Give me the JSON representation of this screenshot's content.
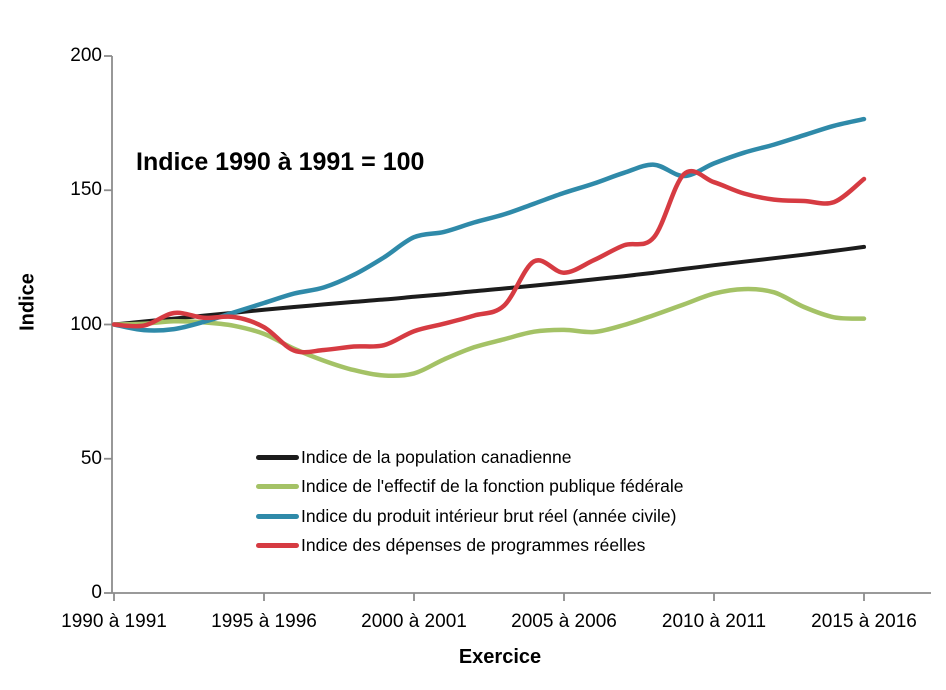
{
  "chart_data": {
    "type": "line",
    "annotation": "Indice 1990 à 1991 = 100",
    "xlabel": "Exercice",
    "ylabel": "Indice",
    "ylim": [
      0,
      200
    ],
    "y_ticks": [
      0,
      50,
      100,
      150,
      200
    ],
    "x_tick_labels": [
      "1990 à 1991",
      "1995 à 1996",
      "2000 à 2001",
      "2005 à 2006",
      "2010 à 2011",
      "2015 à 2016"
    ],
    "x_tick_category_indexes": [
      0,
      5,
      10,
      15,
      20,
      25
    ],
    "categories": [
      "1990 à 1991",
      "1991 à 1992",
      "1992 à 1993",
      "1993 à 1994",
      "1994 à 1995",
      "1995 à 1996",
      "1996 à 1997",
      "1997 à 1998",
      "1998 à 1999",
      "1999 à 2000",
      "2000 à 2001",
      "2001 à 2002",
      "2002 à 2003",
      "2003 à 2004",
      "2004 à 2005",
      "2005 à 2006",
      "2006 à 2007",
      "2007 à 2008",
      "2008 à 2009",
      "2009 à 2010",
      "2010 à 2011",
      "2011 à 2012",
      "2012 à 2013",
      "2013 à 2014",
      "2014 à 2015",
      "2015 à 2016"
    ],
    "grid": false,
    "legend_position": "inside-bottom-left",
    "axis_color": "#8c8c8c",
    "text_color": "#000000",
    "background_color": "#ffffff",
    "series": [
      {
        "id": "population-canadienne",
        "name": "Indice de la population canadienne",
        "color": "#1c1c1c",
        "stroke_width": 4,
        "values": [
          100,
          101.1,
          102.2,
          103.3,
          104.4,
          105.5,
          106.5,
          107.5,
          108.4,
          109.3,
          110.3,
          111.3,
          112.4,
          113.4,
          114.5,
          115.6,
          116.8,
          118.0,
          119.3,
          120.7,
          122.1,
          123.4,
          124.7,
          126.0,
          127.4,
          128.9
        ]
      },
      {
        "id": "effectif-fonction-publique",
        "name": "Indice de l'effectif de la fonction publique fédérale",
        "color": "#a4c266",
        "stroke_width": 4.5,
        "values": [
          100,
          100.3,
          101.2,
          100.8,
          99.5,
          96.5,
          91.0,
          86.5,
          83.0,
          81.0,
          81.8,
          87.0,
          91.5,
          94.5,
          97.3,
          98.0,
          97.2,
          99.8,
          103.5,
          107.5,
          111.5,
          113.2,
          112.0,
          106.5,
          102.7,
          102.2
        ]
      },
      {
        "id": "pib-reel",
        "name": "Indice du produit intérieur brut réel (année civile)",
        "color": "#2f8aa9",
        "stroke_width": 4.5,
        "values": [
          100,
          97.9,
          98.3,
          101.0,
          104.5,
          108.0,
          111.5,
          113.8,
          118.5,
          125.0,
          132.5,
          134.5,
          138.0,
          141.0,
          145.0,
          149.0,
          152.5,
          156.5,
          159.5,
          155.3,
          160.0,
          164.0,
          167.0,
          170.5,
          174.0,
          176.5
        ]
      },
      {
        "id": "depenses-programmes",
        "name": "Indice des dépenses de programmes réelles",
        "color": "#d63b42",
        "stroke_width": 4.5,
        "values": [
          100,
          99.6,
          104.3,
          102.5,
          102.8,
          99.0,
          90.3,
          90.5,
          91.8,
          92.3,
          97.5,
          100.3,
          103.3,
          107.0,
          123.5,
          119.3,
          124.0,
          129.5,
          132.5,
          156.0,
          153.0,
          148.8,
          146.5,
          146.0,
          145.6,
          154.2
        ]
      }
    ]
  }
}
